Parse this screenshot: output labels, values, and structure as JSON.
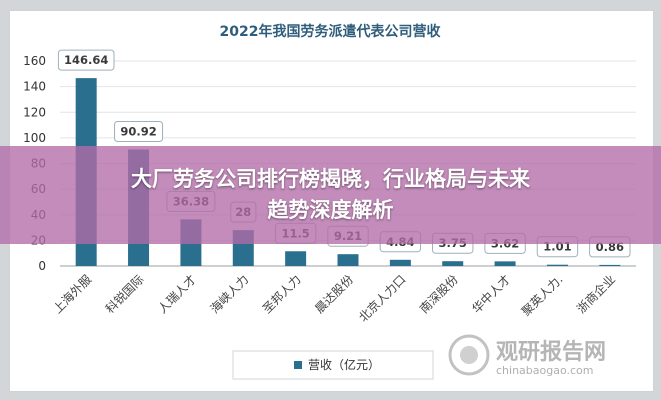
{
  "chart_data": {
    "type": "bar",
    "title": "2022年我国劳务派遣代表公司营收",
    "categories": [
      "上海外服",
      "科锐国际",
      "人瑞人才",
      "海峡人力",
      "圣邦人力",
      "晨达股份",
      "北京人力口",
      "南深股份",
      "华中人才",
      "聚英人力.",
      "浙商企业"
    ],
    "series": [
      {
        "name": "营收（亿元）",
        "values": [
          146.64,
          90.92,
          36.38,
          28,
          11.5,
          9.21,
          4.84,
          3.75,
          3.62,
          1.01,
          0.86
        ]
      }
    ],
    "data_labels": [
      "146.64",
      "90.92",
      "36.38",
      "28",
      "11.5",
      "9.21",
      "4.84",
      "3.75",
      "3.62",
      "1.01",
      "0.86"
    ],
    "ylim": [
      0,
      160
    ],
    "yticks": [
      0,
      20,
      40,
      60,
      80,
      100,
      120,
      140,
      160
    ],
    "grid": true,
    "legend": "bottom",
    "colors": {
      "bar": "#2b6f8f",
      "label_border": "#9fb0bb",
      "title": "#2f5d7c"
    }
  },
  "overlay": {
    "line1": "大厂劳务公司排行榜揭晓，行业格局与未来",
    "line2": "趋势深度解析"
  },
  "watermark": {
    "name": "观研报告网",
    "url": "chinabaogao.com"
  }
}
